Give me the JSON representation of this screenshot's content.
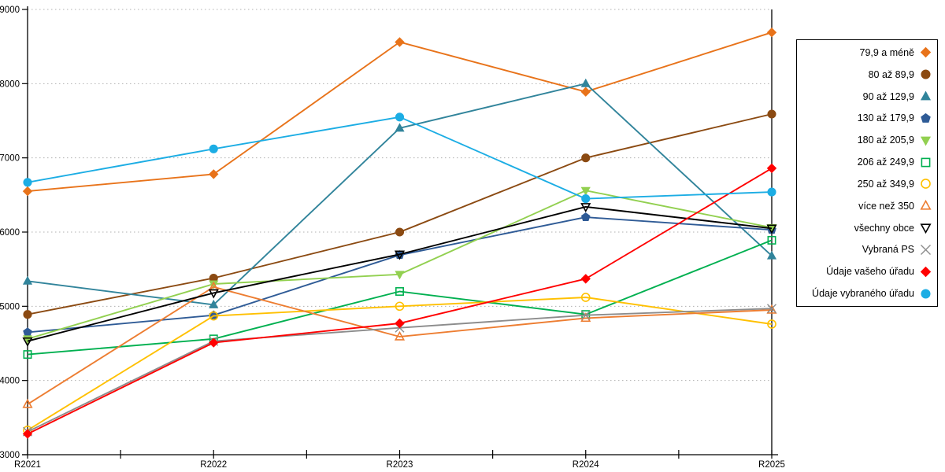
{
  "chart_data": {
    "type": "line",
    "title": "",
    "categories": [
      "R2021",
      "R2022",
      "R2023",
      "R2024",
      "R2025"
    ],
    "ylim": [
      3000,
      9000
    ],
    "ytick_step": 1000,
    "y_tick_labels": [
      "3000",
      "4000",
      "5000",
      "6000",
      "7000",
      "8000",
      "9000"
    ],
    "grid": "horizontal-dotted",
    "legend_position": "right",
    "series": [
      {
        "name": "79,9 a méně",
        "color": "#E8731A",
        "marker": "diamond",
        "fill": "filled",
        "values": [
          6550,
          6780,
          8560,
          7890,
          8690
        ]
      },
      {
        "name": "80 až 89,9",
        "color": "#8B4A12",
        "marker": "circle",
        "fill": "filled",
        "values": [
          4890,
          5380,
          6000,
          7000,
          7590
        ]
      },
      {
        "name": "90 až 129,9",
        "color": "#31849B",
        "marker": "triangle",
        "fill": "filled",
        "values": [
          5340,
          5020,
          7400,
          8000,
          5680
        ]
      },
      {
        "name": "130 až 179,9",
        "color": "#2F5B96",
        "marker": "pentagon",
        "fill": "filled",
        "values": [
          4650,
          4880,
          5690,
          6200,
          6030
        ]
      },
      {
        "name": "180 až 205,9",
        "color": "#92D050",
        "marker": "triangle-down",
        "fill": "filled",
        "values": [
          4560,
          5300,
          5430,
          6560,
          6060
        ]
      },
      {
        "name": "206 až 249,9",
        "color": "#00B050",
        "marker": "square",
        "fill": "open",
        "values": [
          4350,
          4560,
          5200,
          4890,
          5890
        ]
      },
      {
        "name": "250 až 349,9",
        "color": "#FFC000",
        "marker": "circle",
        "fill": "open",
        "values": [
          3330,
          4870,
          5000,
          5120,
          4760
        ]
      },
      {
        "name": "více než 350",
        "color": "#ED7D31",
        "marker": "triangle",
        "fill": "open",
        "values": [
          3680,
          5260,
          4590,
          4840,
          4950
        ]
      },
      {
        "name": "všechny obce",
        "color": "#000000",
        "marker": "triangle-down",
        "fill": "open",
        "values": [
          4530,
          5180,
          5700,
          6340,
          6050
        ]
      },
      {
        "name": "Vybraná PS",
        "color": "#8C8C8C",
        "marker": "x",
        "fill": "open",
        "values": [
          3310,
          4530,
          4710,
          4880,
          4970
        ]
      },
      {
        "name": "Údaje vašeho úřadu",
        "color": "#FF0000",
        "marker": "diamond",
        "fill": "filled",
        "values": [
          3280,
          4510,
          4770,
          5370,
          6860
        ]
      },
      {
        "name": "Údaje vybraného úřadu",
        "color": "#1CADE4",
        "marker": "circle",
        "fill": "filled",
        "values": [
          6670,
          7120,
          7550,
          6450,
          6540
        ]
      }
    ],
    "axis_color": "#000000",
    "gridline_color": "#B0B0B0"
  }
}
